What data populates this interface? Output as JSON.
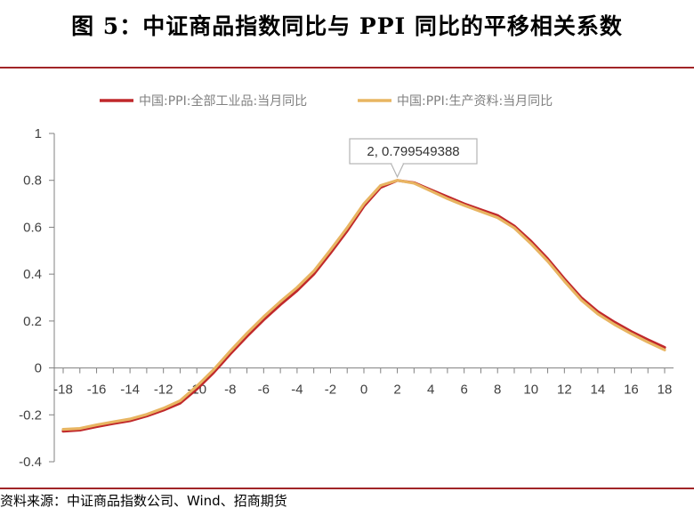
{
  "figure": {
    "title": "图 5：中证商品指数同比与 PPI 同比的平移相关系数",
    "source": "资料来源：中证商品指数公司、Wind、招商期货"
  },
  "chart_data": {
    "type": "line",
    "title": "图 5：中证商品指数同比与 PPI 同比的平移相关系数",
    "xlabel": "",
    "ylabel": "",
    "xlim": [
      -18,
      18
    ],
    "ylim": [
      -0.4,
      1
    ],
    "xticks": [
      "-18",
      "-16",
      "-14",
      "-12",
      "-10",
      "-8",
      "-6",
      "-4",
      "-2",
      "0",
      "2",
      "4",
      "6",
      "8",
      "10",
      "12",
      "14",
      "16",
      "18"
    ],
    "yticks": [
      "1",
      "0.8",
      "0.6",
      "0.4",
      "0.2",
      "0",
      "-0.2",
      "-0.4"
    ],
    "x": [
      -18,
      -17,
      -16,
      -15,
      -14,
      -13,
      -12,
      -11,
      -10,
      -9,
      -8,
      -7,
      -6,
      -5,
      -4,
      -3,
      -2,
      -1,
      0,
      1,
      2,
      3,
      4,
      5,
      6,
      7,
      8,
      9,
      10,
      11,
      12,
      13,
      14,
      15,
      16,
      17,
      18
    ],
    "series": [
      {
        "name": "中国:PPI:全部工业品:当月同比",
        "color": "#c0282b",
        "values": [
          -0.27,
          -0.265,
          -0.25,
          -0.237,
          -0.225,
          -0.205,
          -0.18,
          -0.15,
          -0.09,
          -0.02,
          0.06,
          0.135,
          0.205,
          0.27,
          0.33,
          0.4,
          0.49,
          0.585,
          0.69,
          0.77,
          0.7995,
          0.79,
          0.76,
          0.73,
          0.7,
          0.675,
          0.65,
          0.605,
          0.54,
          0.465,
          0.38,
          0.3,
          0.24,
          0.195,
          0.155,
          0.12,
          0.087
        ]
      },
      {
        "name": "中国:PPI:生产资料:当月同比",
        "color": "#e8b562",
        "values": [
          -0.262,
          -0.258,
          -0.243,
          -0.23,
          -0.218,
          -0.198,
          -0.172,
          -0.14,
          -0.078,
          -0.008,
          0.072,
          0.148,
          0.218,
          0.283,
          0.343,
          0.413,
          0.503,
          0.598,
          0.7,
          0.778,
          0.8,
          0.788,
          0.755,
          0.722,
          0.693,
          0.667,
          0.641,
          0.597,
          0.53,
          0.455,
          0.37,
          0.29,
          0.23,
          0.185,
          0.146,
          0.11,
          0.077
        ]
      }
    ],
    "legend": "top",
    "grid": false,
    "tooltip": {
      "x": 2,
      "label": "2, 0.799549388"
    }
  }
}
